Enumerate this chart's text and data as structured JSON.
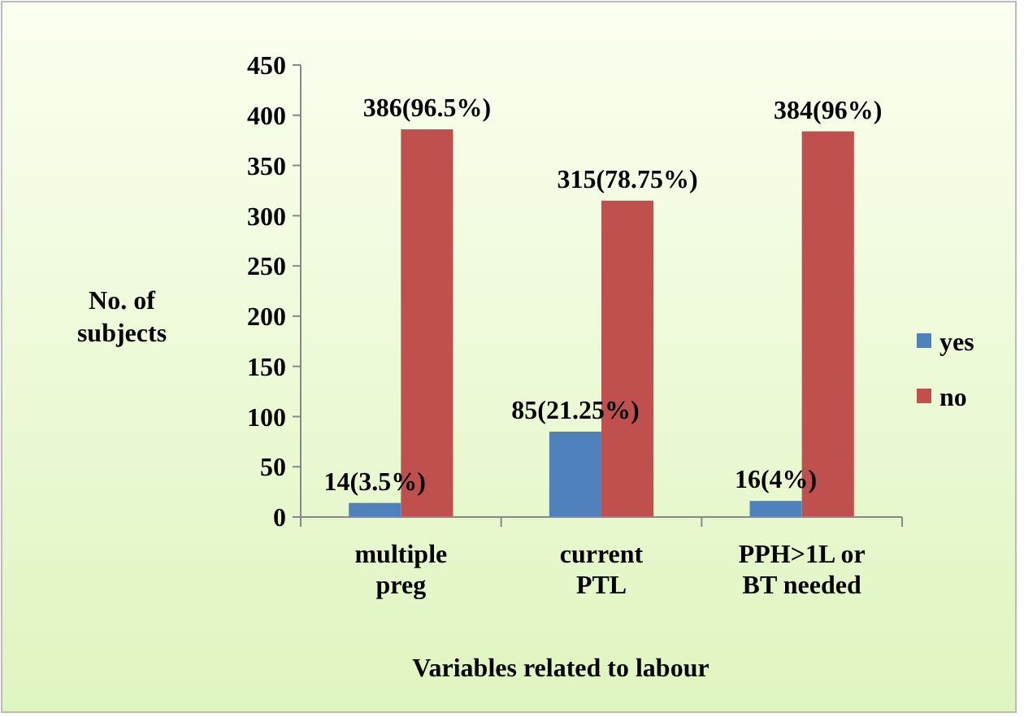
{
  "chart_data": {
    "type": "bar",
    "xlabel": "Variables related to labour",
    "ylabel": "No. of subjects",
    "categories": [
      "multiple preg",
      "current PTL",
      "PPH>1L or BT needed"
    ],
    "series": [
      {
        "name": "yes",
        "color": "#4f81bd",
        "values": [
          14,
          85,
          16
        ],
        "value_labels": [
          "14(3.5%)",
          "85(21.25%)",
          "16(4%)"
        ]
      },
      {
        "name": "no",
        "color": "#c0504d",
        "values": [
          386,
          315,
          384
        ],
        "value_labels": [
          "386(96.5%)",
          "315(78.75%)",
          "384(96%)"
        ]
      }
    ],
    "ylim": [
      0,
      450
    ],
    "yticks": [
      0,
      50,
      100,
      150,
      200,
      250,
      300,
      350,
      400,
      450
    ],
    "grid": false,
    "legend": "right"
  }
}
